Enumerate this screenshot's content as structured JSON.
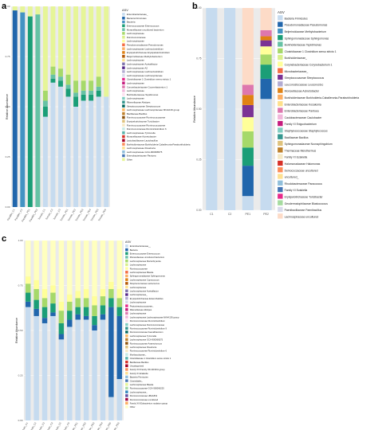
{
  "figure": {
    "panels": [
      "a",
      "b",
      "c"
    ]
  },
  "chart_data": [
    {
      "panel": "a",
      "type": "bar",
      "stacked": true,
      "ylabel": "Relative Abundance",
      "ylim": [
        0,
        1
      ],
      "yticks": [
        "0.00",
        "0.25",
        "0.50",
        "0.75",
        "1.00"
      ],
      "categories": [
        "Parafilm_C1",
        "Parafilm_C2",
        "Parafilm_PE1",
        "Parafilm_PE2",
        "Tomato_C1",
        "Tomato_C2",
        "Tomato_C3",
        "Tomato_PE1",
        "Tomato_PE2",
        "Tomato_PE3",
        "Tomato_PE4",
        "Tomato_PE5",
        "Tomato_PE6"
      ],
      "legend_title": "ASV",
      "legend": [
        {
          "name": "Enterobacteriaceae_",
          "color": "#c6dbef"
        },
        {
          "name": "Bacteria Firmicutes",
          "color": "#2166ac"
        },
        {
          "name": "Bacteria",
          "color": "#4393c3"
        },
        {
          "name": "Enterococcaceae Enterococcus",
          "color": "#1b9e77"
        },
        {
          "name": "Moraxellaceae uncultured bacterium",
          "color": "#66c2a5"
        },
        {
          "name": "Lachnospiraceae",
          "color": "#a6d96a"
        },
        {
          "name": "Ruminococcaceae",
          "color": "#d9ef8b"
        },
        {
          "name": "Lachnospiraceae",
          "color": "#ffff99"
        },
        {
          "name": "Pseudomonadaceae Pseudomonas",
          "color": "#f46d43"
        },
        {
          "name": "Lachnospiraceae Lachnoclostridium",
          "color": "#fdae61"
        },
        {
          "name": "Erysipelotrichaceae Erysipelatoclostridium",
          "color": "#e08214"
        },
        {
          "name": "Beijerinckiaceae Methylobacterium",
          "color": "#b35806"
        },
        {
          "name": "Lachnospiraceae",
          "color": "#fee08b"
        },
        {
          "name": "Lachnospiraceae Acetatifactor",
          "color": "#8073ac"
        },
        {
          "name": "Lachnospiraceae A2",
          "color": "#542788"
        },
        {
          "name": "Lachnospiraceae Lachnoclostridium",
          "color": "#b2abd2"
        },
        {
          "name": "Lachnospiraceae Lachnospiraceae",
          "color": "#d8daeb"
        },
        {
          "name": "Clostridiaceae 1 Clostridium sensu stricto 1",
          "color": "#e7298a"
        },
        {
          "name": "Lachnospiraceae",
          "color": "#c51b7d"
        },
        {
          "name": "Corynebacteriaceae Corynebacterium 1",
          "color": "#de77ae"
        },
        {
          "name": "Lachnospiraceae",
          "color": "#f1b6da"
        },
        {
          "name": "Burkholderiaceae Tepidimonas",
          "color": "#fde0ef"
        },
        {
          "name": "Lachnospiraceae",
          "color": "#80cdc1"
        },
        {
          "name": "Rikenellaceae Alistipes",
          "color": "#35978f"
        },
        {
          "name": "Streptococcaceae Streptococcus",
          "color": "#01665e"
        },
        {
          "name": "Lachnospiraceae Lachnospiraceae NK4A136 group",
          "color": "#fdb863"
        },
        {
          "name": "Bacillaceae Bacillus",
          "color": "#bf812d"
        },
        {
          "name": "Ruminococcaceae Ruminococcaceae",
          "color": "#8c510a"
        },
        {
          "name": "Erysipelotrichaceae Turicibacter",
          "color": "#dfc27d"
        },
        {
          "name": "Ruminococcaceae Ruminococcaceae",
          "color": "#f6e8c3"
        },
        {
          "name": "Ruminococcaceae Ruminiclostridium 6",
          "color": "#c7eae5"
        },
        {
          "name": "Lachnospiraceae Tyzzerella",
          "color": "#5ab4ac"
        },
        {
          "name": "Moraxellaceae Acinetobacter",
          "color": "#d73027"
        },
        {
          "name": "Lactobacillaceae Lactobacillus",
          "color": "#a50026"
        },
        {
          "name": "Burkholderiaceae Burkholderia-Caballeronia-Paraburkholderia",
          "color": "#fc8d59"
        },
        {
          "name": "Lachnospiraceae Roseburia",
          "color": "#fee090"
        },
        {
          "name": "Lachnospiraceae GCA-900066575",
          "color": "#91bfdb"
        },
        {
          "name": "Enterobacteriaceae Pantoea",
          "color": "#4575b4"
        },
        {
          "name": "Other",
          "color": "#e6f598"
        }
      ],
      "series": [
        {
          "name": "Enterobacteriaceae_",
          "color": "#c6dbef",
          "values": [
            0.0,
            0.0,
            0.0,
            0.0,
            0.45,
            0.62,
            0.6,
            0.55,
            0.5,
            0.53,
            0.53,
            0.55,
            0.55
          ]
        },
        {
          "name": "Bacteria Firmicutes",
          "color": "#2166ac",
          "values": [
            0.98,
            0.0,
            0.0,
            0.0,
            0.0,
            0.0,
            0.0,
            0.0,
            0.0,
            0.0,
            0.0,
            0.0,
            0.0
          ]
        },
        {
          "name": "Bacteria",
          "color": "#4393c3",
          "values": [
            0.0,
            0.97,
            0.0,
            0.0,
            0.0,
            0.0,
            0.0,
            0.0,
            0.0,
            0.0,
            0.0,
            0.0,
            0.0
          ]
        },
        {
          "name": "Enterococcaceae Enterococcus",
          "color": "#1b9e77",
          "values": [
            0.0,
            0.0,
            0.95,
            0.0,
            0.05,
            0.02,
            0.03,
            0.04,
            0.05,
            0.03,
            0.03,
            0.03,
            0.0
          ]
        },
        {
          "name": "Moraxellaceae uncultured bacterium",
          "color": "#66c2a5",
          "values": [
            0.0,
            0.0,
            0.0,
            0.96,
            0.03,
            0.02,
            0.02,
            0.02,
            0.02,
            0.02,
            0.02,
            0.02,
            0.0
          ]
        },
        {
          "name": "Lachnospiraceae",
          "color": "#a6d96a",
          "values": [
            0.0,
            0.0,
            0.0,
            0.0,
            0.05,
            0.04,
            0.04,
            0.05,
            0.06,
            0.05,
            0.05,
            0.05,
            0.0
          ]
        },
        {
          "name": "Other",
          "color": "#e6f598",
          "values": [
            0.02,
            0.03,
            0.05,
            0.04,
            0.42,
            0.3,
            0.31,
            0.34,
            0.37,
            0.37,
            0.37,
            0.35,
            0.45
          ]
        }
      ]
    },
    {
      "panel": "b",
      "type": "bar",
      "stacked": true,
      "ylabel": "Relative Abundance",
      "ylim": [
        0,
        1
      ],
      "yticks": [
        "0.00",
        "0.25",
        "0.50",
        "0.75",
        "1.00"
      ],
      "categories": [
        "C1",
        "C2",
        "PE1",
        "PE2"
      ],
      "legend_title": "ASV",
      "legend": [
        {
          "name": "Bacteria Firmicutes",
          "color": "#c6dbef"
        },
        {
          "name": "Pseudomonadaceae Pseudomonas",
          "color": "#2166ac"
        },
        {
          "name": "Beijerinckiaceae Methylobacterium",
          "color": "#4393c3"
        },
        {
          "name": "Sphingomonadaceae Sphingomonas",
          "color": "#1b9e77"
        },
        {
          "name": "Burkholderiaceae Tepidimonas",
          "color": "#66c2a5"
        },
        {
          "name": "Clostridiaceae 1 Clostridium sensu stricto 1",
          "color": "#a6d96a"
        },
        {
          "name": "Burkholderiaceae_",
          "color": "#d9ef8b"
        },
        {
          "name": "Corynebacteriaceae Corynebacterium 1",
          "color": "#ffff99"
        },
        {
          "name": "Microbacteriaceae_",
          "color": "#f46d43"
        },
        {
          "name": "Streptococcaceae Streptococcus",
          "color": "#7b3294"
        },
        {
          "name": "Leuconostocaceae Leuconostoc",
          "color": "#b2abd2"
        },
        {
          "name": "Moraxellaceae Acinetobacter",
          "color": "#e08214"
        },
        {
          "name": "Burkholderiaceae Burkholderia-Caballeronia-Paraburkholderia",
          "color": "#fdae61"
        },
        {
          "name": "Enterobacteriaceae Kosakonia",
          "color": "#fee08b"
        },
        {
          "name": "Enterobacteriaceae Pantoea",
          "color": "#de77ae"
        },
        {
          "name": "Caulobacteraceae Caulobacter",
          "color": "#f1b6da"
        },
        {
          "name": "Family XI Exiguobacterium",
          "color": "#c51b7d"
        },
        {
          "name": "Staphylococcaceae Staphylococcus",
          "color": "#80cdc1"
        },
        {
          "name": "Bacillaceae Bacillus",
          "color": "#35978f"
        },
        {
          "name": "Sphingomonadaceae Novosphingobium",
          "color": "#dfc27d"
        },
        {
          "name": "Thermaceae Meiothermus",
          "color": "#bf812d"
        },
        {
          "name": "Family XI Ezakiella",
          "color": "#f6e8c3"
        },
        {
          "name": "Halomonadaceae Halomonas",
          "color": "#d73027"
        },
        {
          "name": "Deinococcaceae uncultured",
          "color": "#fc8d59"
        },
        {
          "name": "uncultured_",
          "color": "#fee090"
        },
        {
          "name": "Rhodobacteraceae Paracoccus",
          "color": "#91bfdb"
        },
        {
          "name": "Family XI Ezakiella",
          "color": "#4575b4"
        },
        {
          "name": "Erysipelotrichaceae Turicibacter",
          "color": "#e7298a"
        },
        {
          "name": "Geodermatophilaceae Blastococcus",
          "color": "#a6dba0"
        },
        {
          "name": "Paenibacillaceae Paenibacillus",
          "color": "#d8daeb"
        },
        {
          "name": "Lachnospiraceae uncultured",
          "color": "#fddbc7"
        }
      ],
      "series": [
        {
          "name": "Bacteria Firmicutes",
          "color": "#c6dbef",
          "values": [
            1.0,
            1.0,
            0.07,
            0.55
          ]
        },
        {
          "name": "Pseudomonadaceae Pseudomonas",
          "color": "#2166ac",
          "values": [
            0.0,
            0.0,
            0.15,
            0.1
          ]
        },
        {
          "name": "Sphingomonadaceae Sphingomonas",
          "color": "#1b9e77",
          "values": [
            0.0,
            0.0,
            0.09,
            0.07
          ]
        },
        {
          "name": "Clostridiaceae 1 Clostridium sensu stricto 1",
          "color": "#a6d96a",
          "values": [
            0.0,
            0.0,
            0.08,
            0.05
          ]
        },
        {
          "name": "Corynebacteriaceae Corynebacterium 1",
          "color": "#ffff99",
          "values": [
            0.0,
            0.0,
            0.07,
            0.04
          ]
        },
        {
          "name": "Streptococcaceae Streptococcus",
          "color": "#7b3294",
          "values": [
            0.0,
            0.0,
            0.06,
            0.03
          ]
        },
        {
          "name": "Moraxellaceae Acinetobacter",
          "color": "#e08214",
          "values": [
            0.0,
            0.0,
            0.05,
            0.02
          ]
        },
        {
          "name": "Enterobacteriaceae Pantoea",
          "color": "#de77ae",
          "values": [
            0.0,
            0.0,
            0.05,
            0.03
          ]
        },
        {
          "name": "Lachnospiraceae uncultured",
          "color": "#fddbc7",
          "values": [
            0.0,
            0.0,
            0.38,
            0.11
          ]
        }
      ]
    },
    {
      "panel": "c",
      "type": "bar",
      "stacked": true,
      "ylabel": "Relative Abundance",
      "ylim": [
        0,
        1
      ],
      "yticks": [
        "0.00",
        "0.25",
        "0.50",
        "0.75",
        "1.00"
      ],
      "categories": [
        "Tomato_C1",
        "Tomato_C2",
        "Tomato_C3",
        "Tomato_C4",
        "Tomato_C5",
        "Tomato_C6",
        "Tomato_PE1",
        "Tomato_PE2",
        "Tomato_PE3",
        "Tomato_PE4",
        "Tomato_PE5",
        "Tomato_PE6"
      ],
      "legend_title": "ASV",
      "legend": [
        {
          "name": "Enterobacteriaceae__",
          "color": "#c6dbef"
        },
        {
          "name": "Bacteria",
          "color": "#2166ac"
        },
        {
          "name": "Enterococcaceae Enterococcus",
          "color": "#1b9e77"
        },
        {
          "name": "Moraxellaceae uncultured bacterium",
          "color": "#66c2a5"
        },
        {
          "name": "Lachnospiraceae Marvinbryantia",
          "color": "#a6d96a"
        },
        {
          "name": "Lachnospiraceae",
          "color": "#d9ef8b"
        },
        {
          "name": "Ruminococcaceae",
          "color": "#ffff99"
        },
        {
          "name": "Lachnospiraceae Blautia",
          "color": "#f46d43"
        },
        {
          "name": "Sphingomonadaceae Sphingomonas",
          "color": "#fdae61"
        },
        {
          "name": "Lachnospiraceae Coprococcus",
          "color": "#e08214"
        },
        {
          "name": "Streptococcaceae Lactococcus",
          "color": "#b35806"
        },
        {
          "name": "Lachnospiraceae",
          "color": "#fee08b"
        },
        {
          "name": "Lachnospiraceae Acetatifactor",
          "color": "#8073ac"
        },
        {
          "name": "Lachnospiraceae_",
          "color": "#542788"
        },
        {
          "name": "Erysipelotrichaceae Enterorhabdus",
          "color": "#b2abd2"
        },
        {
          "name": "Lachnospiraceae",
          "color": "#d8daeb"
        },
        {
          "name": "Peptostreptococcaceae_",
          "color": "#e7298a"
        },
        {
          "name": "Rikenellaceae Alistipes",
          "color": "#c51b7d"
        },
        {
          "name": "Lachnospiraceae",
          "color": "#de77ae"
        },
        {
          "name": "Lachnospiraceae Lachnospiraceae NK4A136 group",
          "color": "#f1b6da"
        },
        {
          "name": "Ruminococcaceae Ruminiclostridium",
          "color": "#fde0ef"
        },
        {
          "name": "Lachnospiraceae Ruminococcaceae",
          "color": "#80cdc1"
        },
        {
          "name": "Ruminococcaceae Ruminiclostridium 9",
          "color": "#35978f"
        },
        {
          "name": "Ruminococcaceae Faecalibaculum",
          "color": "#01665e"
        },
        {
          "name": "Lachnospiraceae Tyzzerella",
          "color": "#fdb863"
        },
        {
          "name": "Lachnospiraceae GCA-900066575",
          "color": "#bf812d"
        },
        {
          "name": "Ruminococcaceae Anaerotruncus",
          "color": "#8c510a"
        },
        {
          "name": "Lachnospiraceae Roseburia",
          "color": "#dfc27d"
        },
        {
          "name": "Ruminococcaceae Ruminiclostridium 6",
          "color": "#f6e8c3"
        },
        {
          "name": "Muribaculaceae_",
          "color": "#c7eae5"
        },
        {
          "name": "Clostridiaceae 1 Clostridium sensu stricto 1",
          "color": "#5ab4ac"
        },
        {
          "name": "Bacillaceae Bacillus",
          "color": "#d73027"
        },
        {
          "name": "Uncategorized",
          "color": "#a50026"
        },
        {
          "name": "Family XIII Family XIII AD3011 group",
          "color": "#fc8d59"
        },
        {
          "name": "Family XI Ezakiella",
          "color": "#fee090"
        },
        {
          "name": "Bacteria Firmicutes",
          "color": "#91bfdb"
        },
        {
          "name": "Clostridiales_",
          "color": "#4575b4"
        },
        {
          "name": "Lachnospiraceae Blautia",
          "color": "#e6f598"
        },
        {
          "name": "Ruminococcaceae GCA-900066225",
          "color": "#abdda4"
        },
        {
          "name": "Lachnospiraceae_",
          "color": "#3288bd"
        },
        {
          "name": "Ruminococcaceae UBA1819",
          "color": "#5e4fa2"
        },
        {
          "name": "Ruminococcaceae uncultured",
          "color": "#9e0142"
        },
        {
          "name": "Family XIII Eubacterium nodatum group",
          "color": "#fdae61"
        },
        {
          "name": "Other",
          "color": "#ffffbf"
        }
      ],
      "series": [
        {
          "name": "Enterobacteriaceae__",
          "color": "#c6dbef",
          "values": [
            0.63,
            0.58,
            0.54,
            0.58,
            0.45,
            0.52,
            0.56,
            0.56,
            0.5,
            0.56,
            0.13,
            0.23
          ]
        },
        {
          "name": "Bacteria",
          "color": "#2166ac",
          "values": [
            0.03,
            0.04,
            0.03,
            0.02,
            0.03,
            0.04,
            0.03,
            0.02,
            0.03,
            0.03,
            0.5,
            0.35
          ]
        },
        {
          "name": "Enterococcaceae Enterococcus",
          "color": "#1b9e77",
          "values": [
            0.05,
            0.05,
            0.06,
            0.05,
            0.06,
            0.05,
            0.04,
            0.05,
            0.05,
            0.05,
            0.05,
            0.05
          ]
        },
        {
          "name": "Lachnospiraceae Marvinbryantia",
          "color": "#a6d96a",
          "values": [
            0.05,
            0.06,
            0.05,
            0.06,
            0.07,
            0.05,
            0.05,
            0.05,
            0.06,
            0.05,
            0.05,
            0.05
          ]
        },
        {
          "name": "Ruminococcaceae",
          "color": "#ffff99",
          "values": [
            0.04,
            0.05,
            0.05,
            0.04,
            0.05,
            0.04,
            0.04,
            0.05,
            0.05,
            0.04,
            0.04,
            0.05
          ]
        },
        {
          "name": "Other",
          "color": "#ffffbf",
          "values": [
            0.2,
            0.22,
            0.27,
            0.25,
            0.34,
            0.3,
            0.28,
            0.27,
            0.31,
            0.27,
            0.23,
            0.27
          ]
        }
      ]
    }
  ]
}
